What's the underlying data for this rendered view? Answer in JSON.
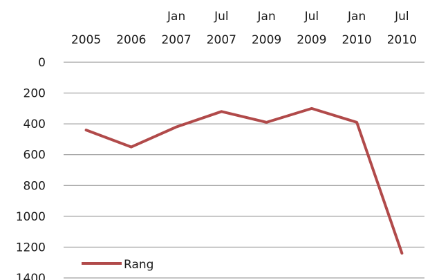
{
  "chart_data": {
    "type": "line",
    "categories": [
      [
        "",
        "2005"
      ],
      [
        "",
        "2006"
      ],
      [
        "Jan",
        "2007"
      ],
      [
        "Jul",
        "2007"
      ],
      [
        "Jan",
        "2009"
      ],
      [
        "Jul",
        "2009"
      ],
      [
        "Jan",
        "2010"
      ],
      [
        "Jul",
        "2010"
      ]
    ],
    "series": [
      {
        "name": "Rang",
        "values": [
          440,
          550,
          420,
          320,
          390,
          300,
          390,
          1240
        ],
        "color": "#b14a4a"
      }
    ],
    "y_ticks": [
      "0",
      "200",
      "400",
      "600",
      "800",
      "1000",
      "1200",
      "1400"
    ],
    "ylim": [
      0,
      1400
    ],
    "y_inverted": true,
    "x_axis_position": "top",
    "grid": true,
    "legend": {
      "position": "bottom-left"
    }
  }
}
